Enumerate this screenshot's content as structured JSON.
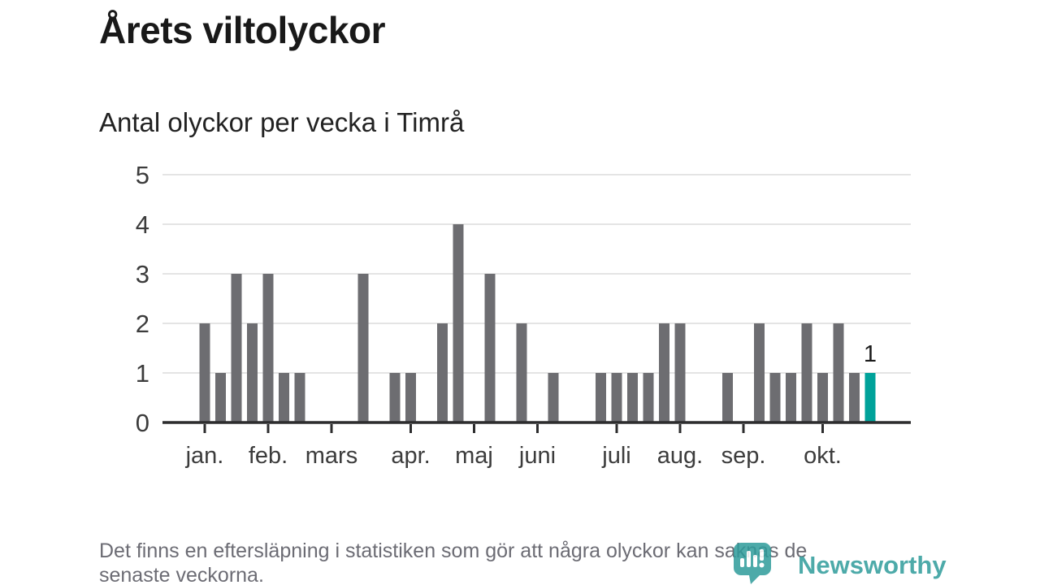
{
  "title": "Årets viltolyckor",
  "subtitle": "Antal olyckor per vecka i Timrå",
  "footer": {
    "line1": "Det finns en eftersläpning i statistiken som gör att några olyckor kan saknas de",
    "line2": "senaste veckorna."
  },
  "logo": {
    "text": "Newsworthy",
    "icon": "newsworthy-pin-icon"
  },
  "colors": {
    "bar": "#6d6d71",
    "highlight": "#00a29a",
    "grid": "#e4e4e4",
    "axis": "#2d2d2e",
    "tick_label": "#3c3c3c",
    "value_label": "#1a1a1a",
    "logo": "#2e9c9b"
  },
  "chart_data": {
    "type": "bar",
    "title": "Årets viltolyckor",
    "subtitle": "Antal olyckor per vecka i Timrå",
    "x_unit": "week of year",
    "values": [
      2,
      1,
      3,
      2,
      3,
      1,
      1,
      0,
      0,
      0,
      3,
      0,
      1,
      1,
      0,
      2,
      4,
      0,
      3,
      0,
      2,
      0,
      1,
      0,
      0,
      1,
      1,
      1,
      1,
      2,
      2,
      0,
      0,
      1,
      0,
      2,
      1,
      1,
      2,
      1,
      2,
      1,
      1
    ],
    "highlight_index": 42,
    "highlight_value_label": "1",
    "ylim": [
      0,
      5
    ],
    "yticks": [
      0,
      1,
      2,
      3,
      4,
      5
    ],
    "month_ticks": [
      {
        "label": "jan.",
        "week_index": 0
      },
      {
        "label": "feb.",
        "week_index": 4
      },
      {
        "label": "mars",
        "week_index": 8
      },
      {
        "label": "apr.",
        "week_index": 13
      },
      {
        "label": "maj",
        "week_index": 17
      },
      {
        "label": "juni",
        "week_index": 21
      },
      {
        "label": "juli",
        "week_index": 26
      },
      {
        "label": "aug.",
        "week_index": 30
      },
      {
        "label": "sep.",
        "week_index": 34
      },
      {
        "label": "okt.",
        "week_index": 39
      }
    ],
    "grid": "horizontal",
    "legend": "none"
  }
}
